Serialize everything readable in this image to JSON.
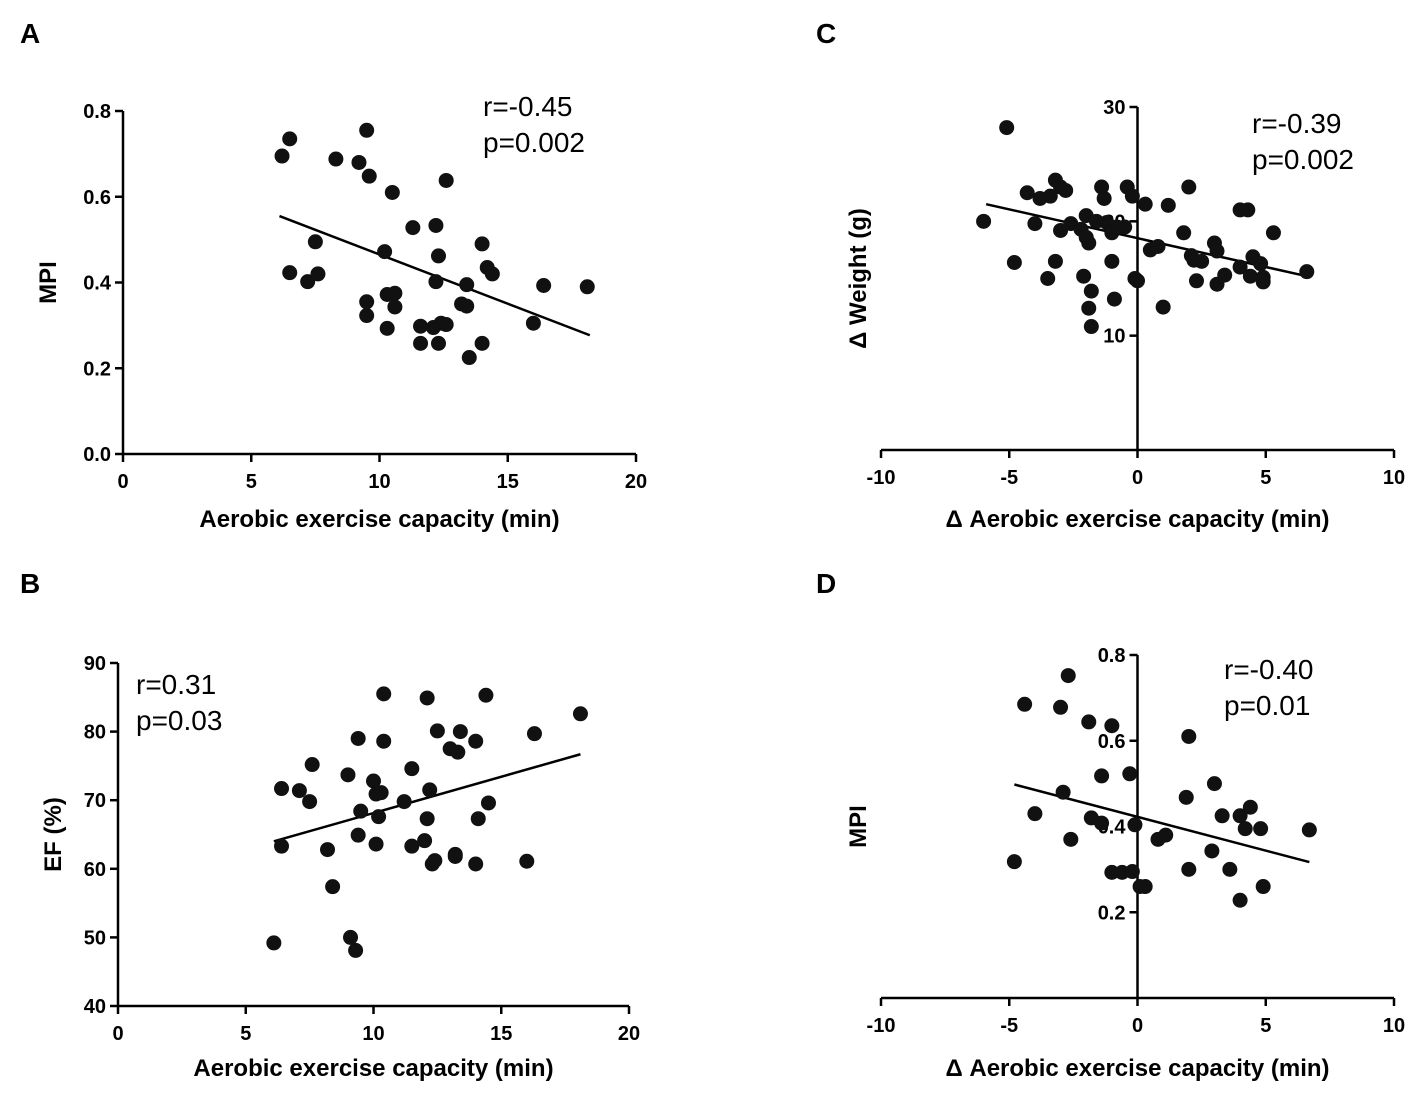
{
  "chart_data": [
    {
      "panel": "A",
      "type": "scatter",
      "xlabel": "Aerobic exercise capacity (min)",
      "ylabel": "MPI",
      "xlim": [
        0,
        20
      ],
      "ylim": [
        0.0,
        0.8
      ],
      "xticks": [
        0,
        5,
        10,
        15,
        20
      ],
      "xtick_labels": [
        "0",
        "5",
        "10",
        "15",
        "20"
      ],
      "yticks": [
        0.0,
        0.2,
        0.4,
        0.6,
        0.8
      ],
      "ytick_labels": [
        "0.0",
        "0.2",
        "0.4",
        "0.6",
        "0.8"
      ],
      "axis_style": "box-origin",
      "stats": [
        "r=-0.45",
        "p=0.002"
      ],
      "stats_position": "top-right",
      "fit_line": {
        "x": [
          6.1,
          18.2
        ],
        "y": [
          0.555,
          0.277
        ]
      },
      "points": [
        [
          6.2,
          0.695
        ],
        [
          6.5,
          0.735
        ],
        [
          6.5,
          0.423
        ],
        [
          7.2,
          0.402
        ],
        [
          7.5,
          0.495
        ],
        [
          7.6,
          0.42
        ],
        [
          8.3,
          0.688
        ],
        [
          9.2,
          0.68
        ],
        [
          9.5,
          0.755
        ],
        [
          9.6,
          0.648
        ],
        [
          9.5,
          0.355
        ],
        [
          9.5,
          0.323
        ],
        [
          10.2,
          0.472
        ],
        [
          10.3,
          0.293
        ],
        [
          10.3,
          0.372
        ],
        [
          10.5,
          0.61
        ],
        [
          10.6,
          0.375
        ],
        [
          10.6,
          0.343
        ],
        [
          11.3,
          0.528
        ],
        [
          11.6,
          0.298
        ],
        [
          11.6,
          0.258
        ],
        [
          12.1,
          0.295
        ],
        [
          12.2,
          0.533
        ],
        [
          12.2,
          0.402
        ],
        [
          12.3,
          0.462
        ],
        [
          12.3,
          0.258
        ],
        [
          12.4,
          0.305
        ],
        [
          12.6,
          0.302
        ],
        [
          12.6,
          0.638
        ],
        [
          13.2,
          0.35
        ],
        [
          13.4,
          0.345
        ],
        [
          13.4,
          0.395
        ],
        [
          13.5,
          0.225
        ],
        [
          14.0,
          0.258
        ],
        [
          14.0,
          0.49
        ],
        [
          14.2,
          0.435
        ],
        [
          14.4,
          0.42
        ],
        [
          16.0,
          0.305
        ],
        [
          16.4,
          0.393
        ],
        [
          18.1,
          0.39
        ]
      ]
    },
    {
      "panel": "B",
      "type": "scatter",
      "xlabel": "Aerobic exercise capacity (min)",
      "ylabel": "EF (%)",
      "xlim": [
        0,
        20
      ],
      "ylim": [
        40,
        90
      ],
      "xticks": [
        0,
        5,
        10,
        15,
        20
      ],
      "xtick_labels": [
        "0",
        "5",
        "10",
        "15",
        "20"
      ],
      "yticks": [
        40,
        50,
        60,
        70,
        80,
        90
      ],
      "ytick_labels": [
        "40",
        "50",
        "60",
        "70",
        "80",
        "90"
      ],
      "axis_style": "box-origin",
      "stats": [
        "r=0.31",
        "p=0.03"
      ],
      "stats_position": "top-left",
      "fit_line": {
        "x": [
          6.1,
          18.1
        ],
        "y": [
          64.0,
          76.7
        ]
      },
      "points": [
        [
          6.1,
          49.2
        ],
        [
          6.4,
          63.3
        ],
        [
          6.4,
          71.7
        ],
        [
          7.1,
          71.4
        ],
        [
          7.5,
          69.8
        ],
        [
          7.6,
          75.2
        ],
        [
          8.2,
          62.8
        ],
        [
          8.4,
          57.4
        ],
        [
          9.0,
          73.7
        ],
        [
          9.1,
          50.0
        ],
        [
          9.3,
          48.1
        ],
        [
          9.4,
          79.0
        ],
        [
          9.4,
          64.9
        ],
        [
          9.5,
          68.4
        ],
        [
          10.0,
          72.8
        ],
        [
          10.1,
          70.9
        ],
        [
          10.1,
          63.6
        ],
        [
          10.2,
          67.6
        ],
        [
          10.3,
          71.1
        ],
        [
          10.4,
          78.6
        ],
        [
          10.4,
          85.5
        ],
        [
          11.2,
          69.8
        ],
        [
          11.5,
          74.6
        ],
        [
          11.5,
          63.3
        ],
        [
          12.0,
          64.1
        ],
        [
          12.1,
          84.9
        ],
        [
          12.1,
          67.3
        ],
        [
          12.2,
          71.5
        ],
        [
          12.3,
          60.7
        ],
        [
          12.4,
          61.2
        ],
        [
          12.5,
          80.1
        ],
        [
          13.0,
          77.5
        ],
        [
          13.2,
          61.8
        ],
        [
          13.2,
          62.1
        ],
        [
          13.3,
          77.0
        ],
        [
          13.4,
          80.0
        ],
        [
          14.0,
          78.6
        ],
        [
          14.0,
          60.7
        ],
        [
          14.1,
          67.3
        ],
        [
          14.4,
          85.3
        ],
        [
          14.5,
          69.6
        ],
        [
          16.0,
          61.1
        ],
        [
          16.3,
          79.7
        ],
        [
          18.1,
          82.6
        ]
      ]
    },
    {
      "panel": "C",
      "type": "scatter",
      "xlabel": "Δ Aerobic exercise capacity (min)",
      "ylabel": "Δ Weight (g)",
      "xlim": [
        -10,
        10
      ],
      "ylim": [
        0,
        30
      ],
      "xticks": [
        -10,
        -5,
        0,
        5,
        10
      ],
      "xtick_labels": [
        "-10",
        "-5",
        "0",
        "5",
        "10"
      ],
      "yticks": [
        10,
        20,
        30
      ],
      "ytick_labels": [
        "10",
        "20",
        "30"
      ],
      "axis_style": "centered",
      "stats": [
        "r=-0.39",
        "p=0.002"
      ],
      "stats_position": "top-right",
      "fit_line": {
        "x": [
          -5.9,
          6.6
        ],
        "y": [
          21.5,
          15.2
        ]
      },
      "points": [
        [
          -5.1,
          28.2
        ],
        [
          -6.0,
          20.0
        ],
        [
          -4.8,
          16.4
        ],
        [
          -4.3,
          22.5
        ],
        [
          -4.0,
          19.8
        ],
        [
          -3.8,
          22.0
        ],
        [
          -3.5,
          15.0
        ],
        [
          -3.4,
          22.2
        ],
        [
          -3.2,
          23.6
        ],
        [
          -3.2,
          16.5
        ],
        [
          -3.0,
          19.2
        ],
        [
          -3.0,
          23.0
        ],
        [
          -2.8,
          22.7
        ],
        [
          -2.6,
          19.8
        ],
        [
          -2.2,
          19.3
        ],
        [
          -2.1,
          15.2
        ],
        [
          -2.0,
          20.5
        ],
        [
          -2.0,
          18.6
        ],
        [
          -1.9,
          18.1
        ],
        [
          -1.9,
          12.4
        ],
        [
          -1.8,
          13.9
        ],
        [
          -1.8,
          10.8
        ],
        [
          -1.6,
          20.0
        ],
        [
          -1.4,
          23.0
        ],
        [
          -1.3,
          22.0
        ],
        [
          -1.2,
          19.9
        ],
        [
          -1.0,
          16.5
        ],
        [
          -1.0,
          19.0
        ],
        [
          -0.9,
          13.2
        ],
        [
          -0.8,
          19.5
        ],
        [
          -0.5,
          19.5
        ],
        [
          -0.4,
          23.0
        ],
        [
          -0.2,
          22.2
        ],
        [
          -0.1,
          15.0
        ],
        [
          0.0,
          14.8
        ],
        [
          0.3,
          21.5
        ],
        [
          0.5,
          17.5
        ],
        [
          0.8,
          17.8
        ],
        [
          1.0,
          12.5
        ],
        [
          1.2,
          21.4
        ],
        [
          1.8,
          19.0
        ],
        [
          2.0,
          23.0
        ],
        [
          2.1,
          17.0
        ],
        [
          2.2,
          16.6
        ],
        [
          2.3,
          14.8
        ],
        [
          2.5,
          16.5
        ],
        [
          3.0,
          18.1
        ],
        [
          3.1,
          14.5
        ],
        [
          3.1,
          17.4
        ],
        [
          3.4,
          15.3
        ],
        [
          4.0,
          16.0
        ],
        [
          4.0,
          21.0
        ],
        [
          4.3,
          21.0
        ],
        [
          4.4,
          15.2
        ],
        [
          4.5,
          16.9
        ],
        [
          4.8,
          16.3
        ],
        [
          4.9,
          15.1
        ],
        [
          4.9,
          14.7
        ],
        [
          5.3,
          19.0
        ],
        [
          6.6,
          15.6
        ]
      ]
    },
    {
      "panel": "D",
      "type": "scatter",
      "xlabel": "Δ Aerobic exercise capacity (min)",
      "ylabel": "MPI",
      "xlim": [
        -10,
        10
      ],
      "ylim": [
        0.0,
        0.8
      ],
      "xticks": [
        -10,
        -5,
        0,
        5,
        10
      ],
      "xtick_labels": [
        "-10",
        "-5",
        "0",
        "5",
        "10"
      ],
      "yticks": [
        0.2,
        0.4,
        0.6,
        0.8
      ],
      "ytick_labels": [
        "0.2",
        "0.4",
        "0.6",
        "0.8"
      ],
      "axis_style": "centered",
      "stats": [
        "r=-0.40",
        "p=0.01"
      ],
      "stats_position": "top-right",
      "fit_line": {
        "x": [
          -4.8,
          6.7
        ],
        "y": [
          0.498,
          0.317
        ]
      },
      "points": [
        [
          -4.8,
          0.318
        ],
        [
          -4.4,
          0.685
        ],
        [
          -4.0,
          0.43
        ],
        [
          -3.0,
          0.678
        ],
        [
          -2.9,
          0.48
        ],
        [
          -2.7,
          0.752
        ],
        [
          -2.6,
          0.37
        ],
        [
          -1.9,
          0.644
        ],
        [
          -1.8,
          0.42
        ],
        [
          -1.4,
          0.518
        ],
        [
          -1.4,
          0.408
        ],
        [
          -1.0,
          0.635
        ],
        [
          -1.0,
          0.293
        ],
        [
          -0.6,
          0.293
        ],
        [
          -0.3,
          0.523
        ],
        [
          -0.2,
          0.295
        ],
        [
          -0.1,
          0.404
        ],
        [
          0.1,
          0.26
        ],
        [
          0.3,
          0.26
        ],
        [
          0.8,
          0.37
        ],
        [
          1.1,
          0.38
        ],
        [
          1.9,
          0.468
        ],
        [
          2.0,
          0.61
        ],
        [
          2.0,
          0.3
        ],
        [
          2.9,
          0.343
        ],
        [
          3.0,
          0.5
        ],
        [
          3.3,
          0.425
        ],
        [
          3.6,
          0.3
        ],
        [
          4.0,
          0.425
        ],
        [
          4.0,
          0.228
        ],
        [
          4.2,
          0.395
        ],
        [
          4.4,
          0.445
        ],
        [
          4.8,
          0.395
        ],
        [
          4.9,
          0.26
        ],
        [
          6.7,
          0.392
        ]
      ]
    }
  ]
}
